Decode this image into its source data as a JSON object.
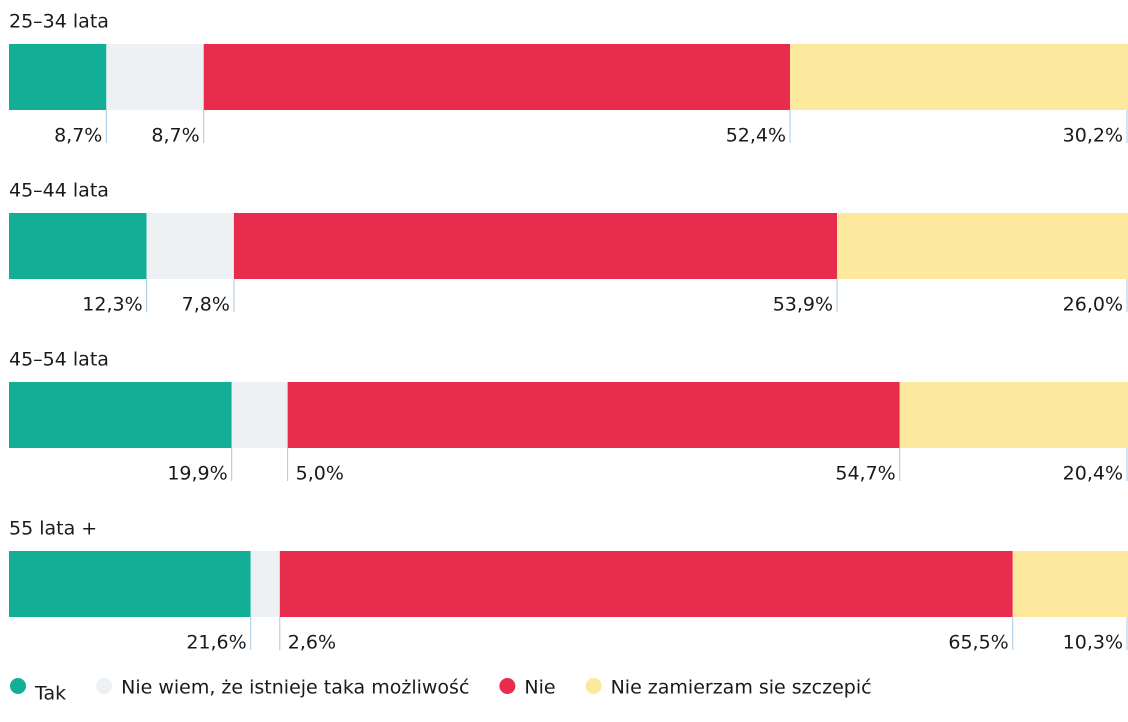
{
  "chart_data": {
    "type": "stacked_bar_horizontal_100",
    "categories": [
      "25–34 lata",
      "45–44 lata",
      "45–54 lata",
      "55 lata +"
    ],
    "series": [
      {
        "name": "Tak",
        "color": "#13ae96",
        "values": [
          8.7,
          12.3,
          19.9,
          21.6
        ],
        "value_labels": [
          "8,7%",
          "12,3%",
          "19,9%",
          "21,6%"
        ]
      },
      {
        "name": "Nie wiem, że istnieje taka możliwość",
        "color": "#edf1f4",
        "values": [
          8.7,
          7.8,
          5.0,
          2.6
        ],
        "value_labels": [
          "8,7%",
          "7,8%",
          "5,0%",
          "2,6%"
        ]
      },
      {
        "name": "Nie",
        "color": "#e72c4d",
        "values": [
          52.4,
          53.9,
          54.7,
          65.5
        ],
        "value_labels": [
          "52,4%",
          "53,9%",
          "54,7%",
          "65,5%"
        ]
      },
      {
        "name": "Nie zamierzam sie szczepić",
        "color": "#fde99d",
        "values": [
          30.2,
          26.0,
          20.4,
          10.3
        ],
        "value_labels": [
          "30,2%",
          "26,0%",
          "20,4%",
          "10,3%"
        ]
      }
    ],
    "legend": "bottom"
  }
}
